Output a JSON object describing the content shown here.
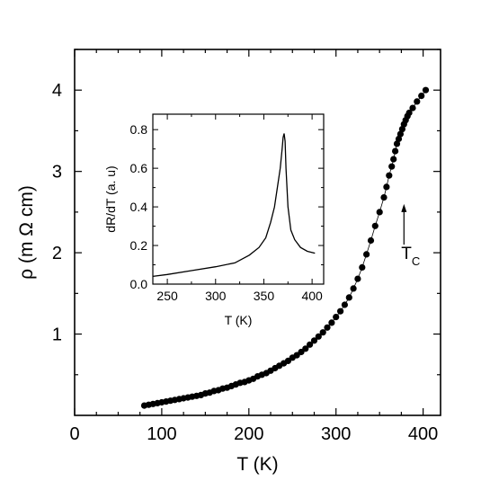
{
  "chart_data": [
    {
      "type": "scatter",
      "xlabel": "T (K)",
      "ylabel": "ρ (m Ω cm)",
      "xlim": [
        0,
        420
      ],
      "ylim": [
        0,
        4.5
      ],
      "x_ticks": [
        0,
        100,
        200,
        300,
        400
      ],
      "y_ticks": [
        1,
        2,
        3,
        4
      ],
      "grid": false,
      "marker": "filled-circle",
      "line": "thin connecting line",
      "annotation": {
        "text_main": "T",
        "text_sub": "C",
        "arrow_x": 378,
        "arrow_from_y": 2.1,
        "arrow_to_y": 2.6
      },
      "series": [
        {
          "x": [
            80,
            85,
            90,
            95,
            100,
            105,
            110,
            115,
            120,
            125,
            130,
            135,
            140,
            145,
            150,
            155,
            160,
            165,
            170,
            175,
            180,
            185,
            190,
            195,
            200,
            205,
            210,
            215,
            220,
            225,
            230,
            235,
            240,
            245,
            250,
            255,
            260,
            265,
            270,
            275,
            280,
            285,
            290,
            295,
            300,
            305,
            310,
            315,
            320,
            325,
            330,
            335,
            340,
            345,
            350,
            355,
            358,
            361,
            364,
            366,
            368,
            370,
            372,
            374,
            376,
            378,
            380,
            382,
            384,
            388,
            393,
            398,
            403
          ],
          "y": [
            0.12,
            0.13,
            0.14,
            0.15,
            0.16,
            0.17,
            0.18,
            0.19,
            0.2,
            0.21,
            0.22,
            0.23,
            0.24,
            0.25,
            0.27,
            0.28,
            0.3,
            0.31,
            0.33,
            0.34,
            0.36,
            0.38,
            0.4,
            0.41,
            0.43,
            0.45,
            0.48,
            0.5,
            0.52,
            0.55,
            0.58,
            0.61,
            0.64,
            0.67,
            0.71,
            0.74,
            0.78,
            0.82,
            0.87,
            0.92,
            0.97,
            1.02,
            1.08,
            1.14,
            1.21,
            1.28,
            1.36,
            1.45,
            1.56,
            1.68,
            1.82,
            1.98,
            2.15,
            2.33,
            2.5,
            2.68,
            2.81,
            2.95,
            3.06,
            3.15,
            3.25,
            3.34,
            3.4,
            3.46,
            3.52,
            3.58,
            3.63,
            3.68,
            3.72,
            3.78,
            3.86,
            3.93,
            4.0
          ]
        }
      ]
    },
    {
      "type": "line",
      "xlabel": "T (K)",
      "ylabel": "dR/dT (a. u)",
      "xlim": [
        235,
        412
      ],
      "ylim": [
        0,
        0.88
      ],
      "x_ticks": [
        250,
        300,
        350,
        400
      ],
      "y_ticks": [
        0.0,
        0.2,
        0.4,
        0.6,
        0.8
      ],
      "grid": false,
      "series": [
        {
          "x": [
            235,
            250,
            275,
            300,
            320,
            335,
            345,
            352,
            357,
            361,
            364,
            367,
            369,
            370,
            371,
            372,
            373,
            375,
            378,
            382,
            388,
            395,
            403
          ],
          "y": [
            0.04,
            0.05,
            0.07,
            0.09,
            0.11,
            0.15,
            0.19,
            0.24,
            0.32,
            0.4,
            0.5,
            0.6,
            0.7,
            0.76,
            0.78,
            0.74,
            0.6,
            0.4,
            0.28,
            0.23,
            0.19,
            0.17,
            0.16
          ]
        }
      ]
    }
  ]
}
